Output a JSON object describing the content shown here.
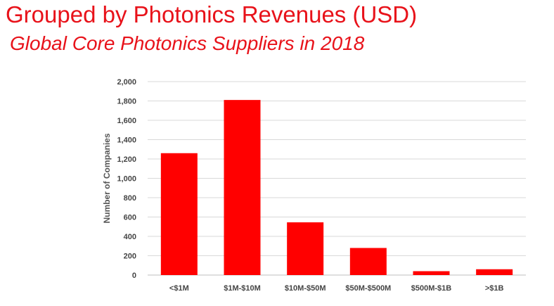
{
  "header": {
    "title": "Grouped by Photonics Revenues (USD)",
    "subtitle": "Global Core Photonics Suppliers in 2018"
  },
  "colors": {
    "bar": "#ff0000",
    "title": "#e8121a",
    "grid": "#d9d9d9"
  },
  "chart_data": {
    "type": "bar",
    "title": "",
    "xlabel": "",
    "ylabel": "Number of Companies",
    "categories": [
      "<$1M",
      "$1M-$10M",
      "$10M-$50M",
      "$50M-$500M",
      "$500M-$1B",
      ">$1B"
    ],
    "values": [
      1260,
      1810,
      545,
      280,
      40,
      60
    ],
    "ylim": [
      0,
      2000
    ],
    "yticks": [
      0,
      200,
      400,
      600,
      800,
      1000,
      1200,
      1400,
      1600,
      1800,
      2000
    ],
    "ytick_labels": [
      "0",
      "200",
      "400",
      "600",
      "800",
      "1,000",
      "1,200",
      "1,400",
      "1,600",
      "1,800",
      "2,000"
    ],
    "grid": true,
    "legend": "none"
  }
}
